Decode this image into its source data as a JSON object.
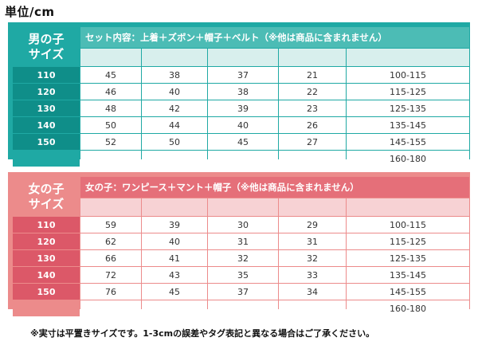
{
  "unit_label": "単位/cm",
  "boys": {
    "title_line1": "男の子",
    "title_line2": "サイズ",
    "header": "セット内容：上着＋ズボン＋帽子＋ベルト（※他は商品に含まれません）",
    "rows": [
      {
        "size": "110",
        "values": [
          "45",
          "38",
          "37",
          "21",
          "100-115"
        ]
      },
      {
        "size": "120",
        "values": [
          "46",
          "40",
          "38",
          "22",
          "115-125"
        ]
      },
      {
        "size": "130",
        "values": [
          "48",
          "42",
          "39",
          "23",
          "125-135"
        ]
      },
      {
        "size": "140",
        "values": [
          "50",
          "44",
          "40",
          "26",
          "135-145"
        ]
      },
      {
        "size": "150",
        "values": [
          "52",
          "50",
          "45",
          "27",
          "145-155"
        ]
      },
      {
        "size": "",
        "values": [
          "",
          "",
          "",
          "",
          "160-180"
        ]
      }
    ]
  },
  "girls": {
    "title_line1": "女の子",
    "title_line2": "サイズ",
    "header": "女の子：ワンピース＋マント＋帽子（※他は商品に含まれません）",
    "rows": [
      {
        "size": "110",
        "values": [
          "59",
          "39",
          "30",
          "29",
          "100-115"
        ]
      },
      {
        "size": "120",
        "values": [
          "62",
          "40",
          "31",
          "31",
          "115-125"
        ]
      },
      {
        "size": "130",
        "values": [
          "66",
          "41",
          "32",
          "32",
          "125-135"
        ]
      },
      {
        "size": "140",
        "values": [
          "72",
          "43",
          "35",
          "33",
          "135-145"
        ]
      },
      {
        "size": "150",
        "values": [
          "76",
          "45",
          "37",
          "34",
          "145-155"
        ]
      },
      {
        "size": "",
        "values": [
          "",
          "",
          "",
          "",
          "160-180"
        ]
      }
    ]
  },
  "footnote": "※実寸は平置きサイズです。1-3cmの誤差やタグ表記と異なる場合はご了承ください。"
}
